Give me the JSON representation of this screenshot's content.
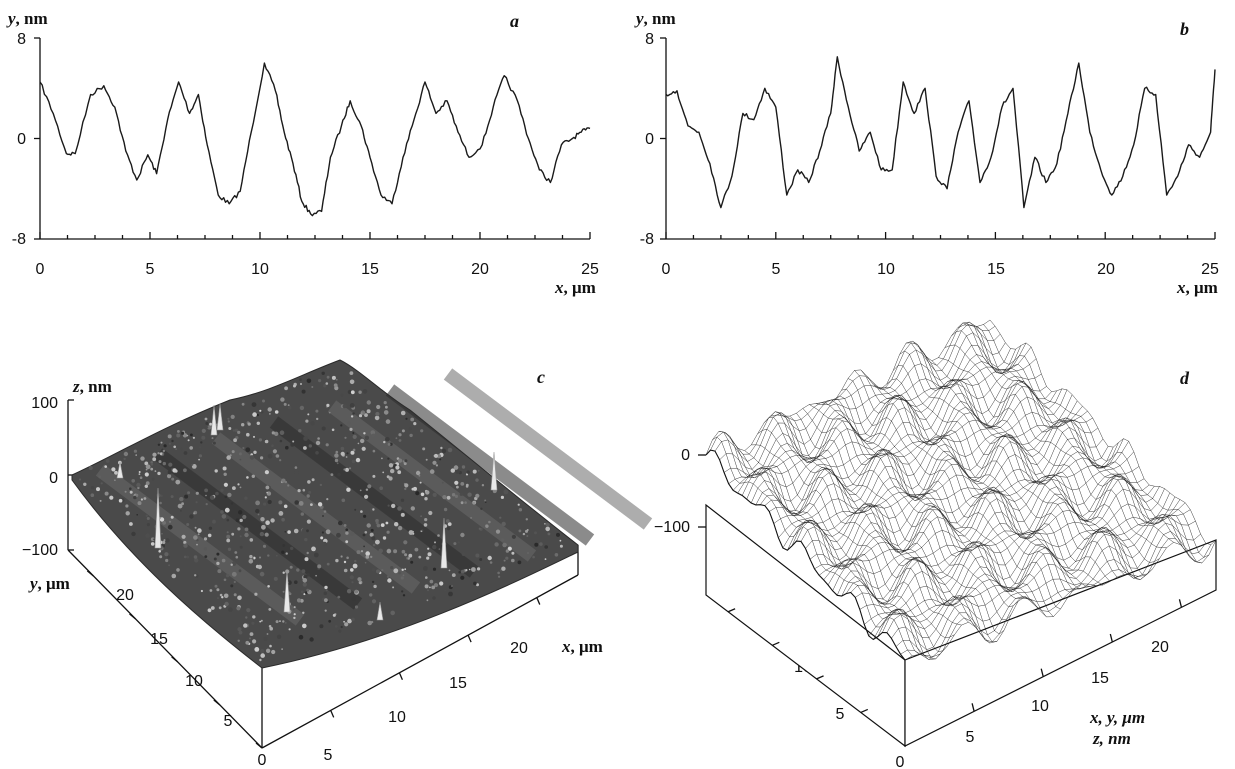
{
  "chart_data": [
    {
      "panel": "a",
      "type": "line",
      "ylabel_var": "y",
      "ylabel_unit": ", nm",
      "xlabel_var": "x",
      "xlabel_unit": ", μm",
      "xlim": [
        0,
        25
      ],
      "ylim": [
        -8,
        8
      ],
      "x_ticks": [
        "0",
        "5",
        "10",
        "15",
        "20",
        "25"
      ],
      "y_ticks": [
        "8",
        "0",
        "-8"
      ],
      "series": [
        {
          "x": [
            0,
            0.6,
            1.2,
            1.6,
            2.3,
            2.9,
            3.4,
            3.9,
            4.4,
            4.9,
            5.3,
            5.8,
            6.3,
            6.8,
            7.2,
            7.6,
            8.1,
            8.6,
            9.1,
            9.6,
            10.2,
            10.7,
            11.1,
            11.5,
            11.9,
            12.3,
            12.8,
            13.2,
            13.7,
            14.1,
            14.6,
            15.0,
            15.5,
            16.0,
            16.5,
            17.0,
            17.5,
            18.0,
            18.5,
            19.0,
            19.5,
            20.1,
            20.6,
            21.1,
            21.7,
            22.2,
            22.7,
            23.2,
            23.7,
            24.2,
            24.6,
            25.0
          ],
          "y": [
            4.5,
            2.0,
            -1.2,
            -1.2,
            3.5,
            4.2,
            2.5,
            -1.0,
            -3.3,
            -1.3,
            -2.8,
            1.5,
            4.5,
            2.0,
            3.5,
            -0.5,
            -4.5,
            -5.2,
            -4.2,
            0.5,
            6.0,
            3.8,
            0.5,
            -2.0,
            -5.0,
            -6.0,
            -5.8,
            -1.5,
            1.0,
            3.0,
            1.0,
            -1.5,
            -4.5,
            -5.2,
            -1.5,
            1.5,
            4.5,
            2.0,
            3.0,
            0.5,
            -1.5,
            -0.5,
            2.5,
            5.0,
            3.0,
            0.0,
            -2.5,
            -3.5,
            -0.5,
            0.0,
            0.5,
            0.8
          ]
        }
      ]
    },
    {
      "panel": "b",
      "type": "line",
      "ylabel_var": "y",
      "ylabel_unit": ", nm",
      "xlabel_var": "x",
      "xlabel_unit": ", μm",
      "xlim": [
        0,
        25
      ],
      "ylim": [
        -8,
        8
      ],
      "x_ticks": [
        "0",
        "5",
        "10",
        "15",
        "20",
        "25"
      ],
      "y_ticks": [
        "8",
        "0",
        "-8"
      ],
      "series": [
        {
          "x": [
            0,
            0.5,
            1.0,
            1.5,
            2.0,
            2.5,
            3.0,
            3.5,
            4.0,
            4.5,
            5.0,
            5.5,
            6.0,
            6.5,
            7.0,
            7.5,
            7.8,
            8.3,
            8.8,
            9.3,
            9.8,
            10.3,
            10.8,
            11.3,
            11.8,
            12.3,
            12.8,
            13.3,
            13.8,
            14.3,
            14.8,
            15.3,
            15.8,
            16.3,
            16.8,
            17.3,
            17.8,
            18.3,
            18.8,
            19.3,
            19.8,
            20.3,
            20.8,
            21.3,
            21.8,
            22.3,
            22.8,
            23.3,
            23.8,
            24.3,
            24.8,
            25.0
          ],
          "y": [
            3.5,
            3.8,
            1.0,
            0.5,
            -2.0,
            -5.5,
            -3.0,
            2.0,
            1.5,
            4.0,
            2.5,
            -4.5,
            -2.5,
            -3.5,
            -1.0,
            2.0,
            6.5,
            2.5,
            -1.0,
            0.5,
            -2.5,
            -2.5,
            4.5,
            2.0,
            4.0,
            -3.0,
            -4.0,
            0.5,
            3.0,
            -3.5,
            -1.5,
            2.5,
            4.0,
            -5.5,
            -1.5,
            -3.5,
            -2.0,
            2.0,
            6.0,
            0.5,
            -2.5,
            -4.5,
            -3.0,
            -0.5,
            4.0,
            3.5,
            -4.5,
            -3.0,
            -0.5,
            -1.5,
            0.5,
            5.5
          ]
        }
      ]
    },
    {
      "panel": "c",
      "type": "surface",
      "zlabel_var": "z",
      "zlabel_unit": ", nm",
      "ylabel_var": "y",
      "ylabel_unit": ", μm",
      "xlabel_var": "x",
      "xlabel_unit": ", μm",
      "z_ticks": [
        "100",
        "0",
        "−100"
      ],
      "y_ticks": [
        "0",
        "5",
        "10",
        "15",
        "20"
      ],
      "x_ticks": [
        "5",
        "10",
        "15",
        "20"
      ]
    },
    {
      "panel": "d",
      "type": "surface",
      "axis_label_1": "x, y, μm",
      "axis_label_2": "z, nm",
      "z_ticks": [
        "0",
        "−100"
      ],
      "y_ticks": [
        "0",
        "5",
        "10",
        "15",
        "20"
      ],
      "x_ticks": [
        "5",
        "10",
        "15",
        "20"
      ]
    }
  ]
}
